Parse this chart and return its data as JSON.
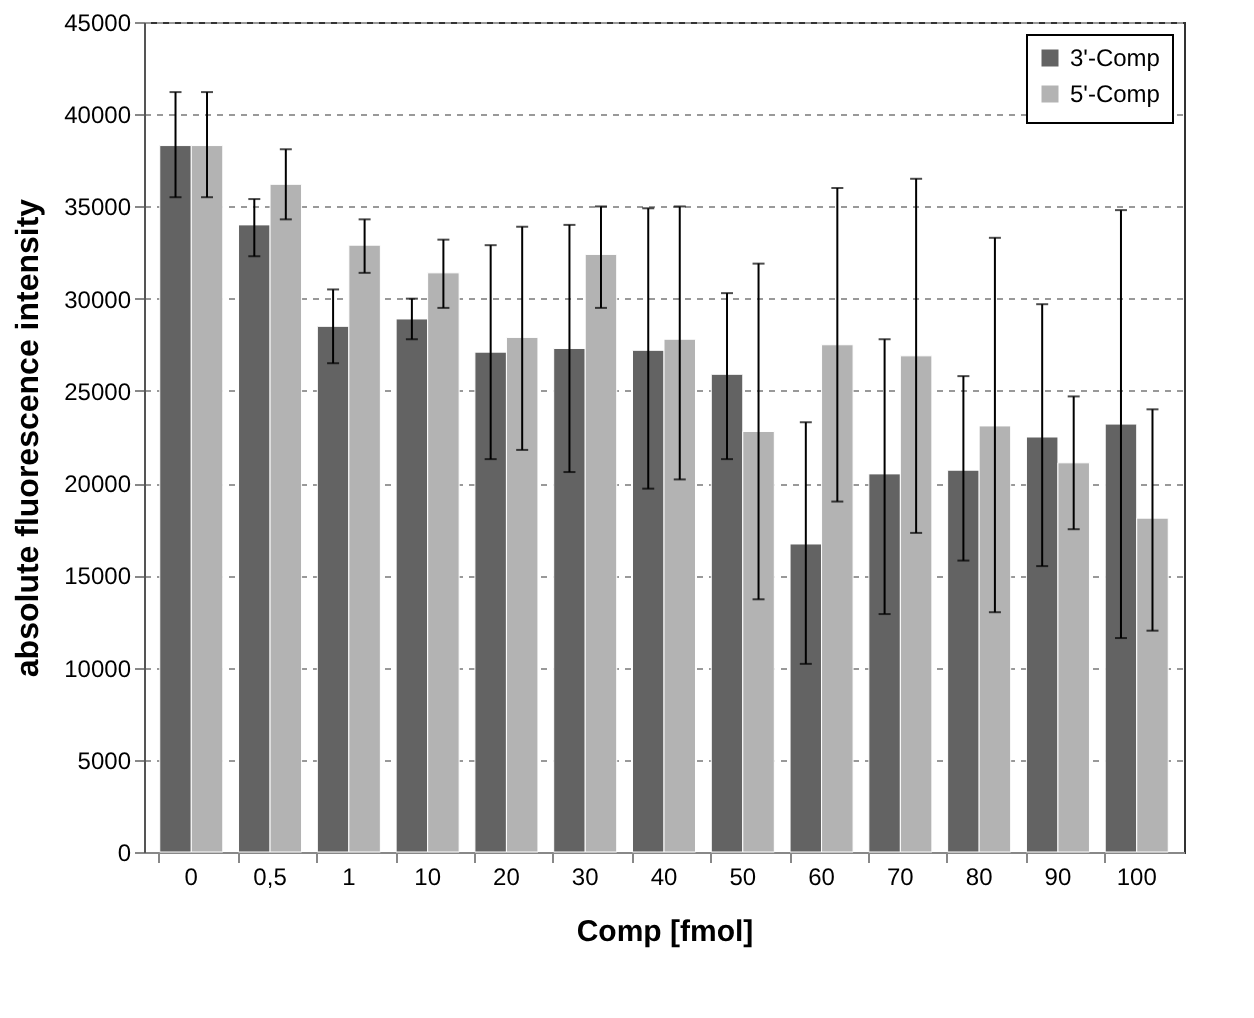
{
  "chart_data": {
    "type": "bar",
    "xlabel": "Comp  [fmol]",
    "ylabel": "absolute fluorescence intensity",
    "categories": [
      "0",
      "0,5",
      "1",
      "10",
      "20",
      "30",
      "40",
      "50",
      "60",
      "70",
      "80",
      "90",
      "100"
    ],
    "series": [
      {
        "name": "3'-Comp",
        "color": "#636363",
        "values": [
          38300,
          34000,
          28500,
          28900,
          27100,
          27300,
          27200,
          25900,
          16700,
          20500,
          20700,
          22500,
          23200
        ],
        "errors": [
          [
            35500,
            41200
          ],
          [
            32300,
            35400
          ],
          [
            26500,
            30500
          ],
          [
            27800,
            30000
          ],
          [
            21300,
            32900
          ],
          [
            20600,
            34000
          ],
          [
            19700,
            34900
          ],
          [
            21300,
            30300
          ],
          [
            10200,
            23300
          ],
          [
            12900,
            27800
          ],
          [
            15800,
            25800
          ],
          [
            15500,
            29700
          ],
          [
            11600,
            34800
          ]
        ]
      },
      {
        "name": "5'-Comp",
        "color": "#b3b3b3",
        "values": [
          38300,
          36200,
          32900,
          31400,
          27900,
          32400,
          27800,
          22800,
          27500,
          26900,
          23100,
          21100,
          18100
        ],
        "errors": [
          [
            35500,
            41200
          ],
          [
            34300,
            38100
          ],
          [
            31400,
            34300
          ],
          [
            29500,
            33200
          ],
          [
            21800,
            33900
          ],
          [
            29500,
            35000
          ],
          [
            20200,
            35000
          ],
          [
            13700,
            31900
          ],
          [
            19000,
            36000
          ],
          [
            17300,
            36500
          ],
          [
            13000,
            33300
          ],
          [
            17500,
            24700
          ],
          [
            12000,
            24000
          ]
        ]
      }
    ],
    "ylim": [
      0,
      45000
    ],
    "yticks": [
      0,
      5000,
      10000,
      15000,
      20000,
      25000,
      30000,
      35000,
      40000,
      45000
    ],
    "grid": "y",
    "legend": "top right"
  }
}
